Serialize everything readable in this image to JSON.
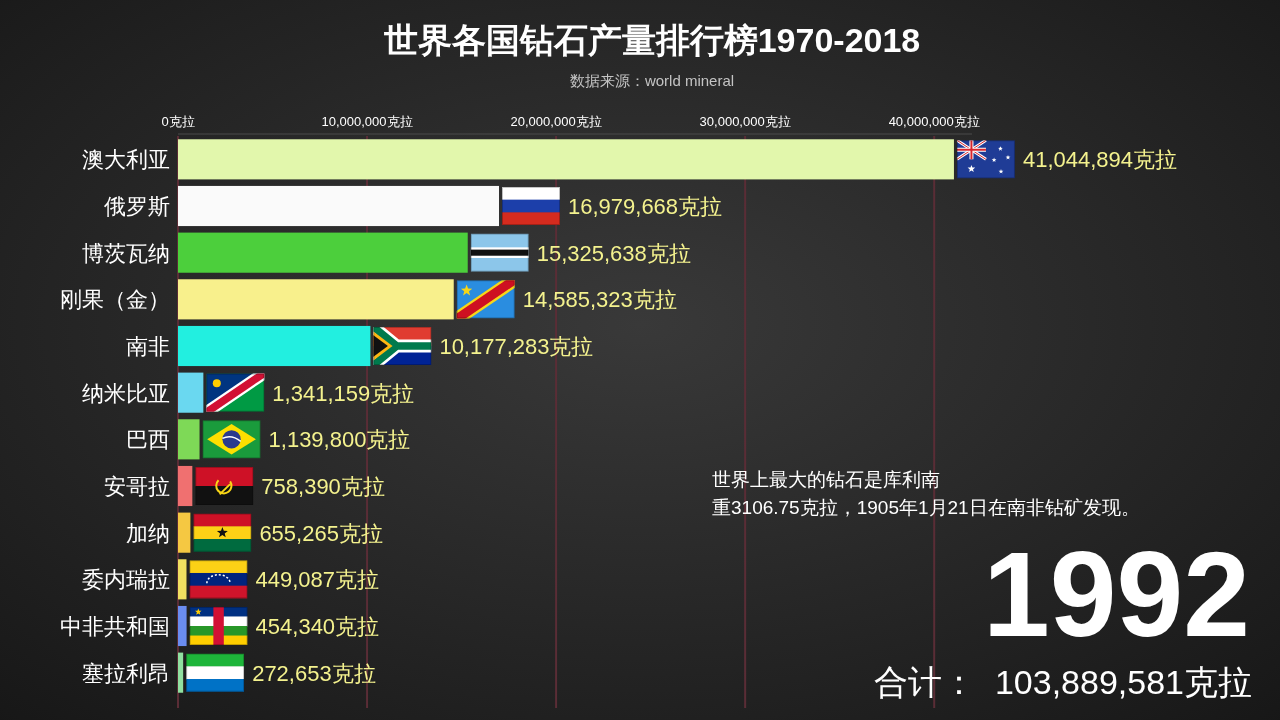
{
  "chart_data": {
    "type": "bar",
    "orientation": "horizontal",
    "title": "世界各国钻石产量排行榜1970-2018",
    "subtitle": "数据来源：world mineral",
    "categories": [
      "澳大利亚",
      "俄罗斯",
      "博茨瓦纳",
      "刚果（金）",
      "南非",
      "纳米比亚",
      "巴西",
      "安哥拉",
      "加纳",
      "委内瑞拉",
      "中非共和国",
      "塞拉利昂"
    ],
    "values": [
      41044894,
      16979668,
      15325638,
      14585323,
      10177283,
      1341159,
      1139800,
      758390,
      655265,
      449087,
      454340,
      272653
    ],
    "colors": [
      "#e2f7ac",
      "#fafafa",
      "#4ccf3c",
      "#f8f08c",
      "#22efe0",
      "#6ad8f0",
      "#7ed957",
      "#f07070",
      "#f5c842",
      "#f0e060",
      "#6a8cf0",
      "#90e0a0"
    ],
    "value_labels": [
      "41,044,894克拉",
      "16,979,668克拉",
      "15,325,638克拉",
      "14,585,323克拉",
      "10,177,283克拉",
      "1,341,159克拉",
      "1,139,800克拉",
      "758,390克拉",
      "655,265克拉",
      "449,087克拉",
      "454,340克拉",
      "272,653克拉"
    ],
    "xlim": [
      0,
      42000000
    ],
    "xticks": [
      {
        "value": 0,
        "label": "0克拉"
      },
      {
        "value": 10000000,
        "label": "10,000,000克拉"
      },
      {
        "value": 20000000,
        "label": "20,000,000克拉"
      },
      {
        "value": 30000000,
        "label": "30,000,000克拉"
      },
      {
        "value": 40000000,
        "label": "40,000,000克拉"
      }
    ],
    "grid": "x",
    "annotations": [
      "世界上最大的钻石是库利南",
      "重3106.75克拉，1905年1月21日在南非钻矿发现。",
      "1992",
      "合计：  103,889,581克拉"
    ]
  }
}
